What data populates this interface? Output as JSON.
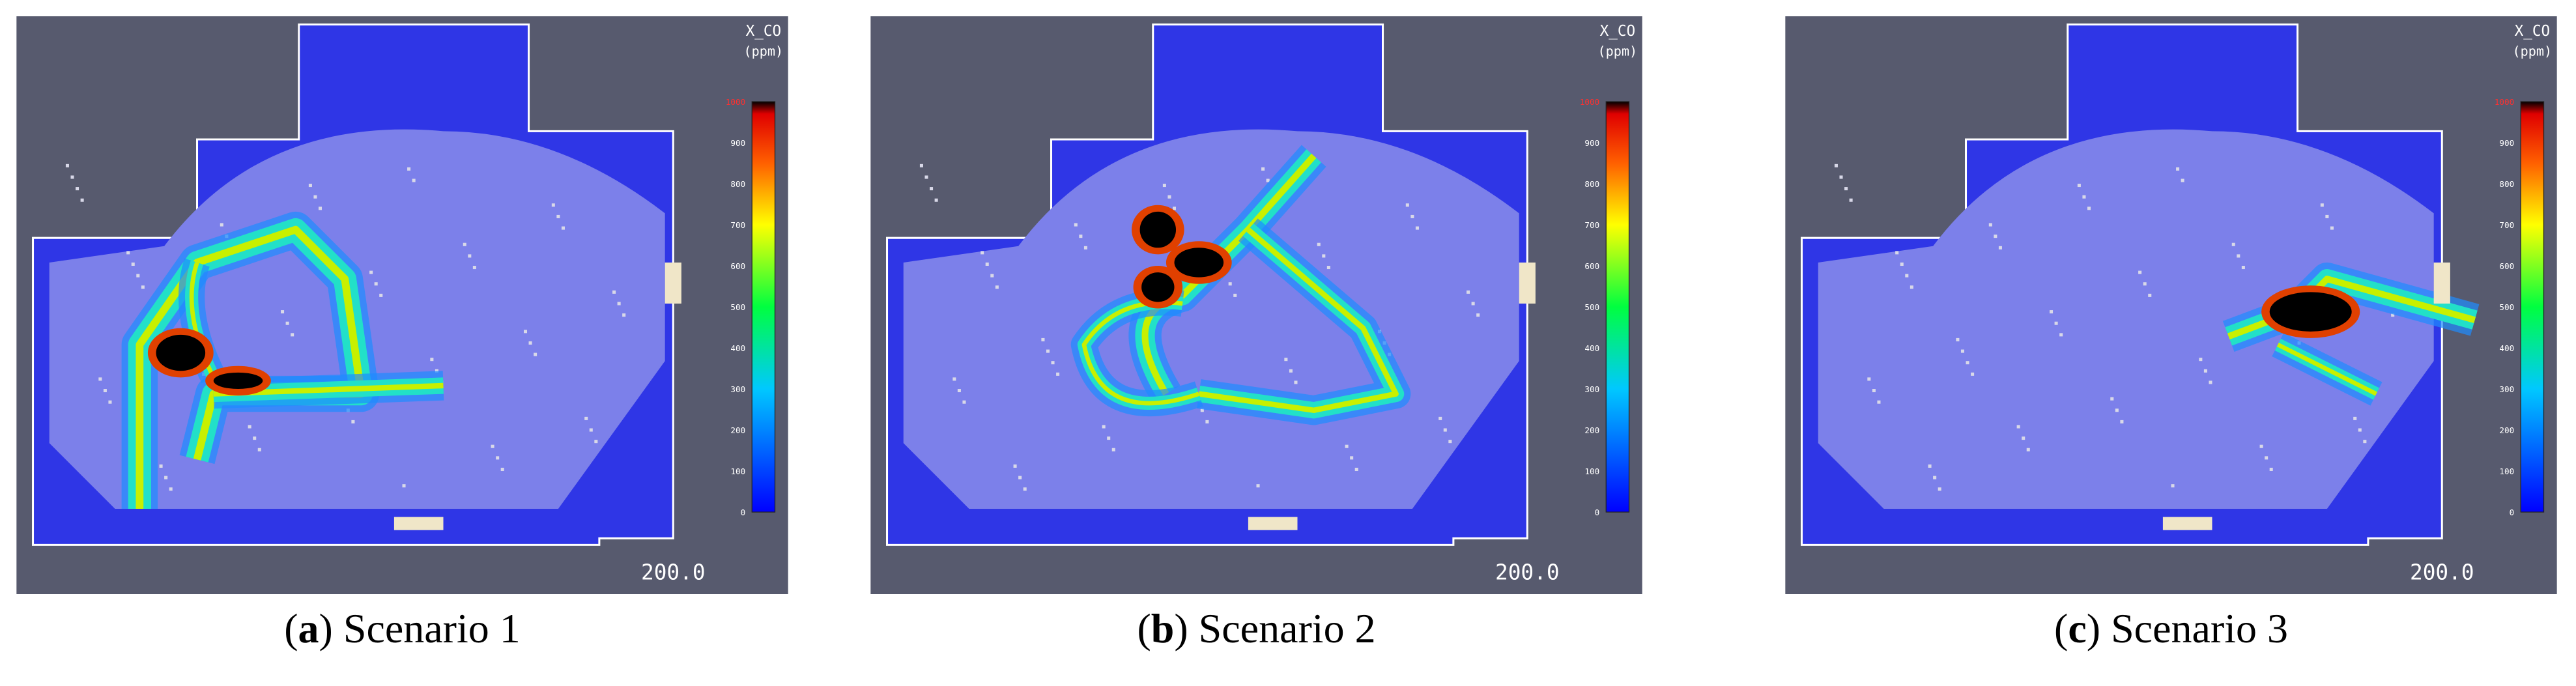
{
  "panels": [
    {
      "label": "a",
      "caption": "Scenario 1",
      "colorbar": {
        "title": "X_CO",
        "unit": "(ppm)",
        "max": 1000,
        "ticks": [
          0,
          100,
          200,
          300,
          400,
          500,
          600,
          700,
          800,
          900
        ]
      },
      "time": "200.0"
    },
    {
      "label": "b",
      "caption": "Scenario 2",
      "colorbar": {
        "title": "X_CO",
        "unit": "(ppm)",
        "max": 1000,
        "ticks": [
          0,
          100,
          200,
          300,
          400,
          500,
          600,
          700,
          800,
          900
        ]
      },
      "time": "200.0"
    },
    {
      "label": "c",
      "caption": "Scenario 3",
      "colorbar": {
        "title": "X_CO",
        "unit": "(ppm)",
        "max": 1000,
        "ticks": [
          0,
          100,
          200,
          300,
          400,
          500,
          600,
          700,
          800,
          900
        ]
      },
      "time": "200.0"
    }
  ]
}
